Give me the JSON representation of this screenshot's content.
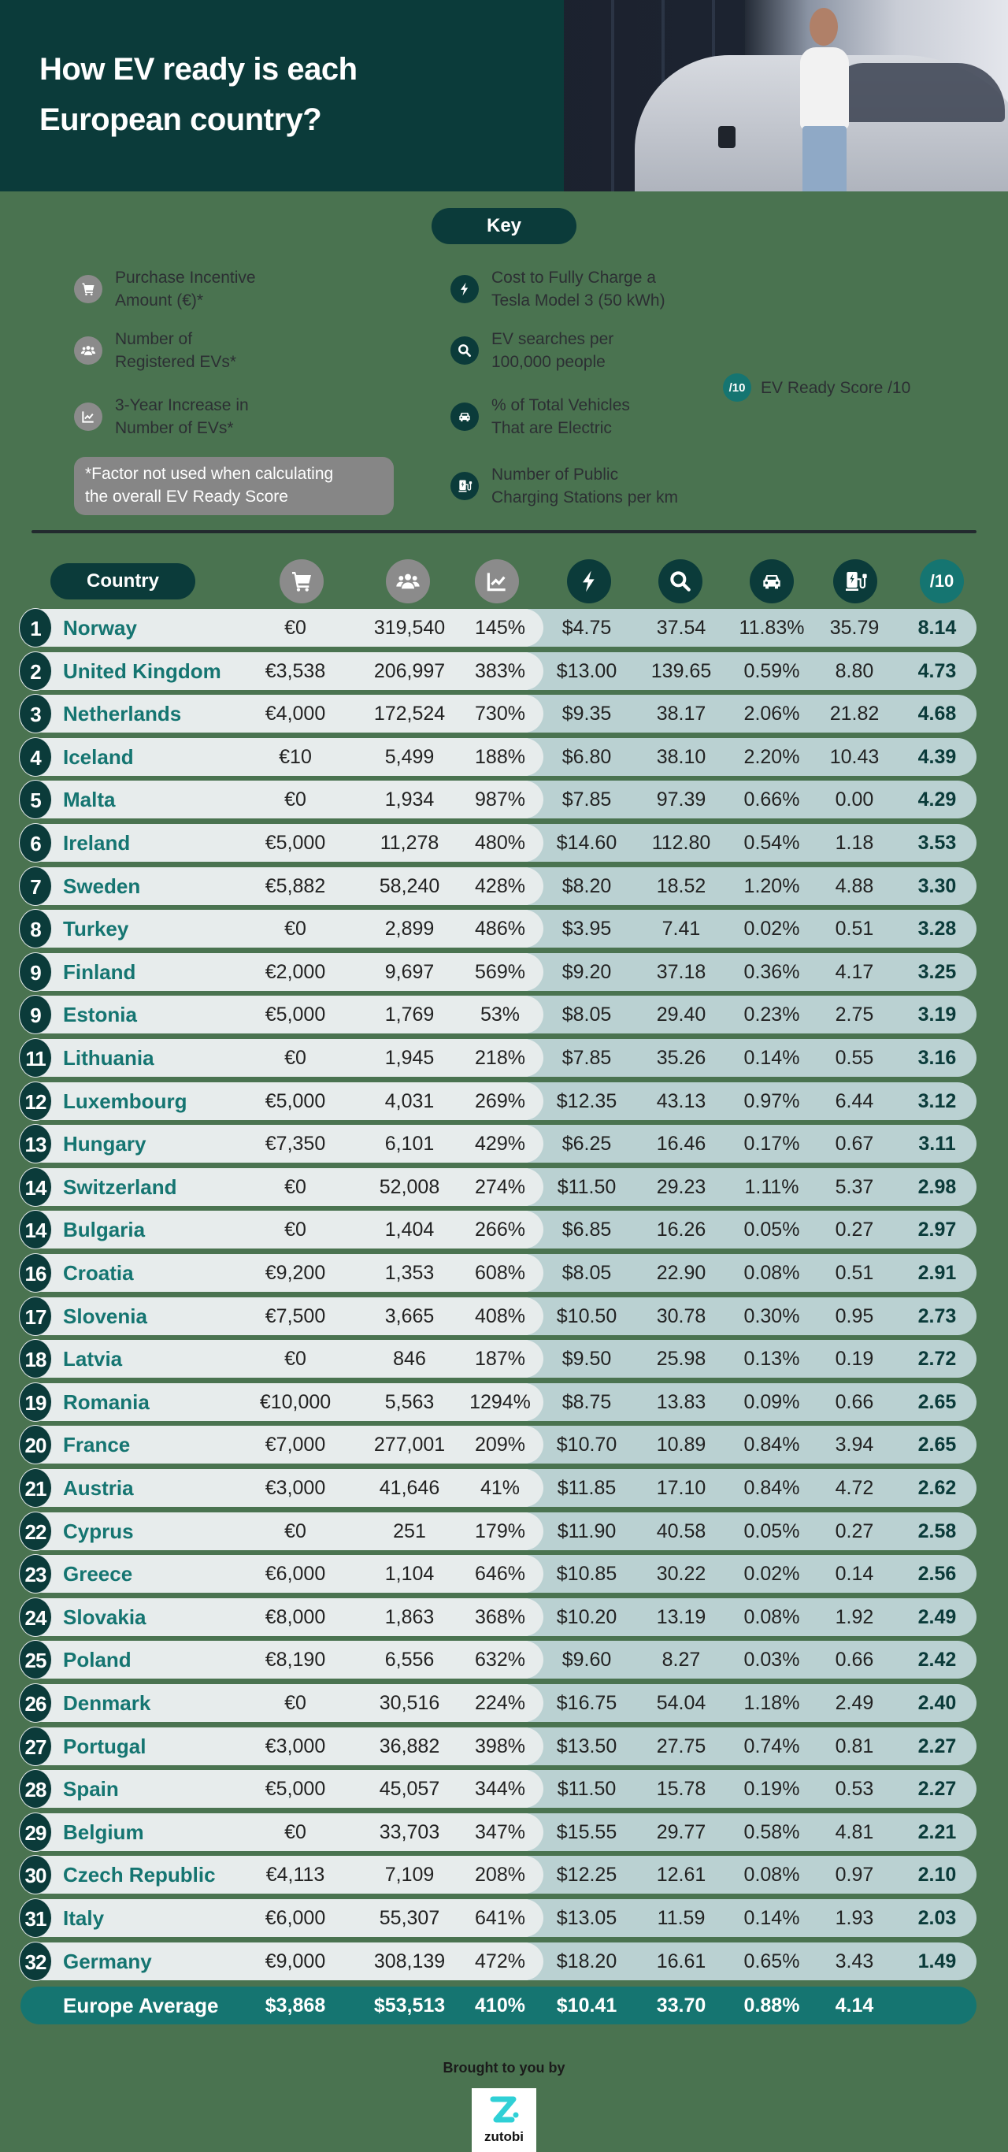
{
  "header": {
    "title_line1": "How EV ready is each",
    "title_line2": "European country?"
  },
  "key": {
    "title": "Key",
    "items": [
      {
        "icon": "cart-icon",
        "style": "grey",
        "label_line1": "Purchase Incentive",
        "label_line2": "Amount (€)*"
      },
      {
        "icon": "users-icon",
        "style": "grey",
        "label_line1": "Number of",
        "label_line2": "Registered EVs*"
      },
      {
        "icon": "trend-chart-icon",
        "style": "grey",
        "label_line1": "3-Year Increase in",
        "label_line2": "Number of EVs*"
      },
      {
        "icon": "lightning-icon",
        "style": "dark",
        "label_line1": "Cost to Fully Charge a",
        "label_line2": "Tesla Model 3 (50 kWh)"
      },
      {
        "icon": "search-icon",
        "style": "dark",
        "label_line1": "EV searches per",
        "label_line2": "100,000 people"
      },
      {
        "icon": "car-icon",
        "style": "dark",
        "label_line1": "% of Total Vehicles",
        "label_line2": "That are Electric"
      },
      {
        "icon": "charging-station-icon",
        "style": "dark",
        "label_line1": "Number of Public",
        "label_line2": "Charging Stations per km"
      },
      {
        "icon": "score-icon",
        "style": "teal",
        "icon_text": "/10",
        "label_line1": "EV Ready Score /10"
      }
    ],
    "footnote_line1": "*Factor not used when calculating",
    "footnote_line2": "the overall EV Ready Score"
  },
  "table": {
    "country_header": "Country",
    "score_header": "/10",
    "average": {
      "label": "Europe Average",
      "values": [
        "$3,868",
        "$53,513",
        "410%",
        "$10.41",
        "33.70",
        "0.88%",
        "4.14"
      ]
    }
  },
  "footer": {
    "brought_by": "Brought to you by",
    "brand": "zutobi"
  },
  "colors": {
    "background": "#4a7350",
    "dark_teal": "#0b3b3a",
    "accent_teal": "#157571",
    "row_light": "#e7ecec",
    "row_tint": "#bad1d2",
    "grey_icon": "#8b8b8b",
    "logo_cyan": "#2fd0d6"
  },
  "chart_data": {
    "type": "table",
    "title": "How EV ready is each European country?",
    "columns": [
      "Rank",
      "Country",
      "Purchase Incentive Amount (€)",
      "Number of Registered EVs",
      "3-Year Increase in Number of EVs",
      "Cost to Fully Charge a Tesla Model 3 (50 kWh)",
      "EV searches per 100,000 people",
      "% of Total Vehicles That are Electric",
      "Number of Public Charging Stations per km",
      "EV Ready Score /10"
    ],
    "rows": [
      [
        "1",
        "Norway",
        "€0",
        "319,540",
        "145%",
        "$4.75",
        "37.54",
        "11.83%",
        "35.79",
        "8.14"
      ],
      [
        "2",
        "United Kingdom",
        "€3,538",
        "206,997",
        "383%",
        "$13.00",
        "139.65",
        "0.59%",
        "8.80",
        "4.73"
      ],
      [
        "3",
        "Netherlands",
        "€4,000",
        "172,524",
        "730%",
        "$9.35",
        "38.17",
        "2.06%",
        "21.82",
        "4.68"
      ],
      [
        "4",
        "Iceland",
        "€10",
        "5,499",
        "188%",
        "$6.80",
        "38.10",
        "2.20%",
        "10.43",
        "4.39"
      ],
      [
        "5",
        "Malta",
        "€0",
        "1,934",
        "987%",
        "$7.85",
        "97.39",
        "0.66%",
        "0.00",
        "4.29"
      ],
      [
        "6",
        "Ireland",
        "€5,000",
        "11,278",
        "480%",
        "$14.60",
        "112.80",
        "0.54%",
        "1.18",
        "3.53"
      ],
      [
        "7",
        "Sweden",
        "€5,882",
        "58,240",
        "428%",
        "$8.20",
        "18.52",
        "1.20%",
        "4.88",
        "3.30"
      ],
      [
        "8",
        "Turkey",
        "€0",
        "2,899",
        "486%",
        "$3.95",
        "7.41",
        "0.02%",
        "0.51",
        "3.28"
      ],
      [
        "9",
        "Finland",
        "€2,000",
        "9,697",
        "569%",
        "$9.20",
        "37.18",
        "0.36%",
        "4.17",
        "3.25"
      ],
      [
        "9",
        "Estonia",
        "€5,000",
        "1,769",
        "53%",
        "$8.05",
        "29.40",
        "0.23%",
        "2.75",
        "3.19"
      ],
      [
        "11",
        "Lithuania",
        "€0",
        "1,945",
        "218%",
        "$7.85",
        "35.26",
        "0.14%",
        "0.55",
        "3.16"
      ],
      [
        "12",
        "Luxembourg",
        "€5,000",
        "4,031",
        "269%",
        "$12.35",
        "43.13",
        "0.97%",
        "6.44",
        "3.12"
      ],
      [
        "13",
        "Hungary",
        "€7,350",
        "6,101",
        "429%",
        "$6.25",
        "16.46",
        "0.17%",
        "0.67",
        "3.11"
      ],
      [
        "14",
        "Switzerland",
        "€0",
        "52,008",
        "274%",
        "$11.50",
        "29.23",
        "1.11%",
        "5.37",
        "2.98"
      ],
      [
        "14",
        "Bulgaria",
        "€0",
        "1,404",
        "266%",
        "$6.85",
        "16.26",
        "0.05%",
        "0.27",
        "2.97"
      ],
      [
        "16",
        "Croatia",
        "€9,200",
        "1,353",
        "608%",
        "$8.05",
        "22.90",
        "0.08%",
        "0.51",
        "2.91"
      ],
      [
        "17",
        "Slovenia",
        "€7,500",
        "3,665",
        "408%",
        "$10.50",
        "30.78",
        "0.30%",
        "0.95",
        "2.73"
      ],
      [
        "18",
        "Latvia",
        "€0",
        "846",
        "187%",
        "$9.50",
        "25.98",
        "0.13%",
        "0.19",
        "2.72"
      ],
      [
        "19",
        "Romania",
        "€10,000",
        "5,563",
        "1294%",
        "$8.75",
        "13.83",
        "0.09%",
        "0.66",
        "2.65"
      ],
      [
        "20",
        "France",
        "€7,000",
        "277,001",
        "209%",
        "$10.70",
        "10.89",
        "0.84%",
        "3.94",
        "2.65"
      ],
      [
        "21",
        "Austria",
        "€3,000",
        "41,646",
        "41%",
        "$11.85",
        "17.10",
        "0.84%",
        "4.72",
        "2.62"
      ],
      [
        "22",
        "Cyprus",
        "€0",
        "251",
        "179%",
        "$11.90",
        "40.58",
        "0.05%",
        "0.27",
        "2.58"
      ],
      [
        "23",
        "Greece",
        "€6,000",
        "1,104",
        "646%",
        "$10.85",
        "30.22",
        "0.02%",
        "0.14",
        "2.56"
      ],
      [
        "24",
        "Slovakia",
        "€8,000",
        "1,863",
        "368%",
        "$10.20",
        "13.19",
        "0.08%",
        "1.92",
        "2.49"
      ],
      [
        "25",
        "Poland",
        "€8,190",
        "6,556",
        "632%",
        "$9.60",
        "8.27",
        "0.03%",
        "0.66",
        "2.42"
      ],
      [
        "26",
        "Denmark",
        "€0",
        "30,516",
        "224%",
        "$16.75",
        "54.04",
        "1.18%",
        "2.49",
        "2.40"
      ],
      [
        "27",
        "Portugal",
        "€3,000",
        "36,882",
        "398%",
        "$13.50",
        "27.75",
        "0.74%",
        "0.81",
        "2.27"
      ],
      [
        "28",
        "Spain",
        "€5,000",
        "45,057",
        "344%",
        "$11.50",
        "15.78",
        "0.19%",
        "0.53",
        "2.27"
      ],
      [
        "29",
        "Belgium",
        "€0",
        "33,703",
        "347%",
        "$15.55",
        "29.77",
        "0.58%",
        "4.81",
        "2.21"
      ],
      [
        "30",
        "Czech Republic",
        "€4,113",
        "7,109",
        "208%",
        "$12.25",
        "12.61",
        "0.08%",
        "0.97",
        "2.10"
      ],
      [
        "31",
        "Italy",
        "€6,000",
        "55,307",
        "641%",
        "$13.05",
        "11.59",
        "0.14%",
        "1.93",
        "2.03"
      ],
      [
        "32",
        "Germany",
        "€9,000",
        "308,139",
        "472%",
        "$18.20",
        "16.61",
        "0.65%",
        "3.43",
        "1.49"
      ]
    ],
    "footer_row": [
      "",
      "Europe Average",
      "$3,868",
      "$53,513",
      "410%",
      "$10.41",
      "33.70",
      "0.88%",
      "4.14",
      ""
    ]
  }
}
